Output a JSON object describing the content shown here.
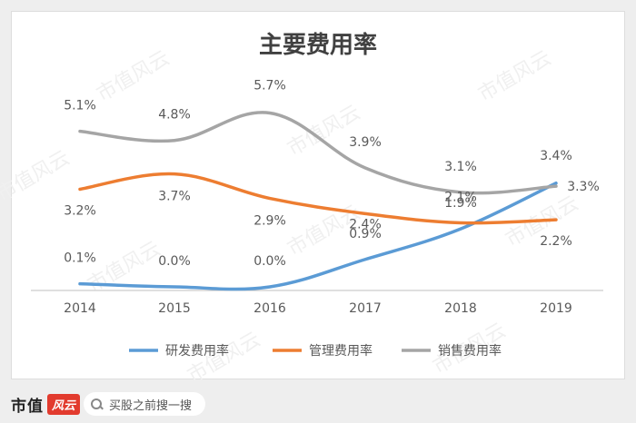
{
  "chart_data": {
    "type": "line",
    "title": "主要费用率",
    "categories": [
      "2014",
      "2015",
      "2016",
      "2017",
      "2018",
      "2019"
    ],
    "series": [
      {
        "name": "研发费用率",
        "color": "#5b9bd5",
        "values": [
          0.1,
          0.0,
          0.0,
          0.9,
          1.9,
          3.4
        ],
        "labels": [
          "0.1%",
          "0.0%",
          "0.0%",
          "0.9%",
          "1.9%",
          "3.4%"
        ]
      },
      {
        "name": "管理费用率",
        "color": "#ed7d31",
        "values": [
          3.2,
          3.7,
          2.9,
          2.4,
          2.1,
          2.2
        ],
        "labels": [
          "3.2%",
          "3.7%",
          "2.9%",
          "2.4%",
          "2.1%",
          "2.2%"
        ]
      },
      {
        "name": "销售费用率",
        "color": "#a5a5a5",
        "values": [
          5.1,
          4.8,
          5.7,
          3.9,
          3.1,
          3.3
        ],
        "labels": [
          "5.1%",
          "4.8%",
          "5.7%",
          "3.9%",
          "3.1%",
          "3.3%"
        ]
      }
    ],
    "legend_position": "bottom",
    "grid": false
  },
  "watermark": "市值风云",
  "footer": {
    "brand": "市值",
    "brand_badge": "风云",
    "search_placeholder": "买股之前搜一搜",
    "search_icon": "search-icon"
  }
}
